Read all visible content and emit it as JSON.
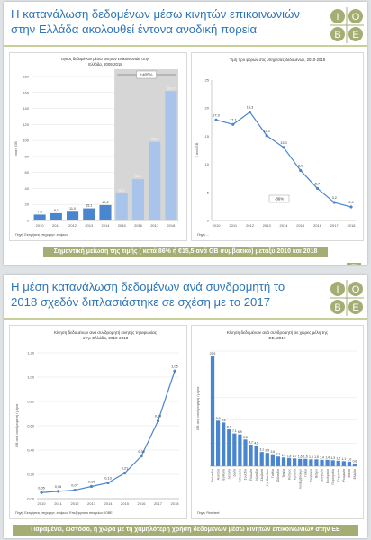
{
  "slides": [
    {
      "title": "Η κατανάλωση δεδομένων μέσω κινητών επικοινωνιών στην Ελλάδα ακολουθεί έντονα ανοδική πορεία",
      "logo": {
        "letters": [
          "I",
          "O",
          "B",
          "E"
        ]
      },
      "banner": "Σημαντική μείωση της τιμής ( κατά 86% ή €15,5 ανά GB συμβατικό) μεταξύ 2010 και 2018",
      "page_number": "23"
    },
    {
      "title": "Η μέση κατανάλωση δεδομένων ανά συνδρομητή το 2018 σχεδόν διπλασιάστηκε σε σχέση με το 2017",
      "logo": {
        "letters": [
          "I",
          "O",
          "B",
          "E"
        ]
      },
      "banner": "Παραμένει, ωστόσο, η χώρα με τη χαμηλότερη χρήση δεδομένων μέσω κινητών επικοινωνιών στην ΕΕ",
      "page_number": ""
    }
  ],
  "chart_data": [
    {
      "id": "volume",
      "type": "bar",
      "title": "Όγκος δεδομένων μέσω κινητών επικοινωνιών στην Ελλάδα, 2009-2018",
      "xlabel": "",
      "ylabel": "εκατ. GB",
      "categories": [
        "2010",
        "2011",
        "2012",
        "2013",
        "2014",
        "2015",
        "2016",
        "2017",
        "2018"
      ],
      "values": [
        7.4,
        9.1,
        11.0,
        15.1,
        19.2,
        33.7,
        51.6,
        98.2,
        161.7
      ],
      "data_labels": [
        "7,4",
        "9,1",
        "11,0",
        "15,1",
        "19,2",
        "33,7",
        "51,6",
        "98,2",
        "161,7"
      ],
      "ylim": [
        0,
        180
      ],
      "yticks": [
        0,
        20,
        40,
        60,
        80,
        100,
        120,
        140,
        160,
        180
      ],
      "annotation": "+405%",
      "highlight_from": "2015",
      "colors": {
        "early": "#4a86d0",
        "late": "#a9c4ea",
        "highlight": "#d6d6d6"
      },
      "grid": true,
      "source": "Πηγή: Εκτιμήσεις επιχειρησ. εταίρων"
    },
    {
      "id": "price",
      "type": "line",
      "title": "Τιμή προ φόρων στις υπηρεσίες δεδομένων, 2010-2018",
      "xlabel": "",
      "ylabel": "€ ανά GB",
      "x": [
        "2010",
        "2011",
        "2012",
        "2013",
        "2014",
        "2015",
        "2016",
        "2017",
        "2018"
      ],
      "values": [
        17.9,
        17.1,
        19.3,
        15.1,
        13.0,
        8.9,
        5.7,
        3.2,
        2.4
      ],
      "data_labels": [
        "17,9",
        "17,1",
        "19,3",
        "15,1",
        "13,0",
        "8,9",
        "5,7",
        "3,2",
        "2,4"
      ],
      "ylim": [
        0,
        25
      ],
      "yticks": [
        0,
        5,
        10,
        15,
        20,
        25
      ],
      "annotation": "-86%",
      "color": "#4a86d0",
      "grid": false,
      "source": "Πηγή: ..."
    },
    {
      "id": "per_sub",
      "type": "line",
      "title": "Κίνηση δεδομένων ανά συνδρομητή κινητής τηλεφωνίας στην Ελλάδα, 2010-2018",
      "xlabel": "",
      "ylabel": "GB ανά συνδρομητή / μήνα",
      "x": [
        "2010",
        "2011",
        "2012",
        "2013",
        "2014",
        "2015",
        "2016",
        "2017",
        "2018"
      ],
      "values": [
        0.05,
        0.06,
        0.07,
        0.1,
        0.13,
        0.21,
        0.35,
        0.64,
        1.05
      ],
      "data_labels": [
        "0,05",
        "0,06",
        "0,07",
        "0,10",
        "0,13",
        "0,21",
        "0,35",
        "0,64",
        "1,05"
      ],
      "ylim": [
        0,
        1.2
      ],
      "yticks": [
        "0,00",
        "0,20",
        "0,40",
        "0,60",
        "0,80",
        "1,00",
        "1,20"
      ],
      "color": "#4a86d0",
      "grid": true,
      "source": "Πηγή: Εκτιμήσεις επιχειρησ. εταίρων. Επεξεργασία στοιχείων: ΙΟΒΕ"
    },
    {
      "id": "eu",
      "type": "bar",
      "title": "Κίνηση δεδομένων ανά συνδρομητή σε χώρες μέλη της ΕΕ, 2017",
      "xlabel": "",
      "ylabel": "GB ανά συνδρομητή / μήνα",
      "categories": [
        "Φινλανδία",
        "Αυστρία",
        "Εσθονία",
        "Λετονία",
        "Δανία",
        "Λιθουανία",
        "Σουηδία",
        "Πολωνία",
        "Ιρλανδία",
        "Σλοβενία",
        "Ην. Βασίλειο",
        "Γαλλία",
        "Ολλανδία",
        "Τσεχία",
        "Κύπρος",
        "Κροατία",
        "Λουξεμβούργο",
        "Ιταλία",
        "Σλοβακία",
        "Βέλγιο",
        "Ουγγαρία",
        "Βουλγαρία",
        "Πορτογαλία",
        "Γερμανία",
        "Ρουμανία",
        "Μάλτα",
        "Ελλάδα"
      ],
      "values": [
        23.9,
        9.9,
        9.5,
        8.0,
        7.1,
        6.9,
        5.8,
        4.7,
        4.5,
        3.1,
        2.9,
        2.6,
        2.1,
        1.9,
        1.8,
        1.7,
        1.6,
        1.6,
        1.5,
        1.5,
        1.4,
        1.4,
        1.3,
        1.2,
        1.1,
        1.0,
        0.6
      ],
      "data_labels": [
        "23,9",
        "9,9",
        "9,5",
        "8,0",
        "7,1",
        "6,9",
        "5,8",
        "4,7",
        "4,5",
        "3,1",
        "2,9",
        "2,6",
        "2,1",
        "1,9",
        "1,8",
        "1,7",
        "1,6",
        "1,6",
        "1,5",
        "1,5",
        "1,4",
        "1,4",
        "1,3",
        "1,2",
        "1,1",
        "1,0",
        "0,6"
      ],
      "ylim": [
        0,
        25
      ],
      "color": "#4a86d0",
      "grid": true,
      "source": "Πηγή: Rewheel"
    }
  ]
}
